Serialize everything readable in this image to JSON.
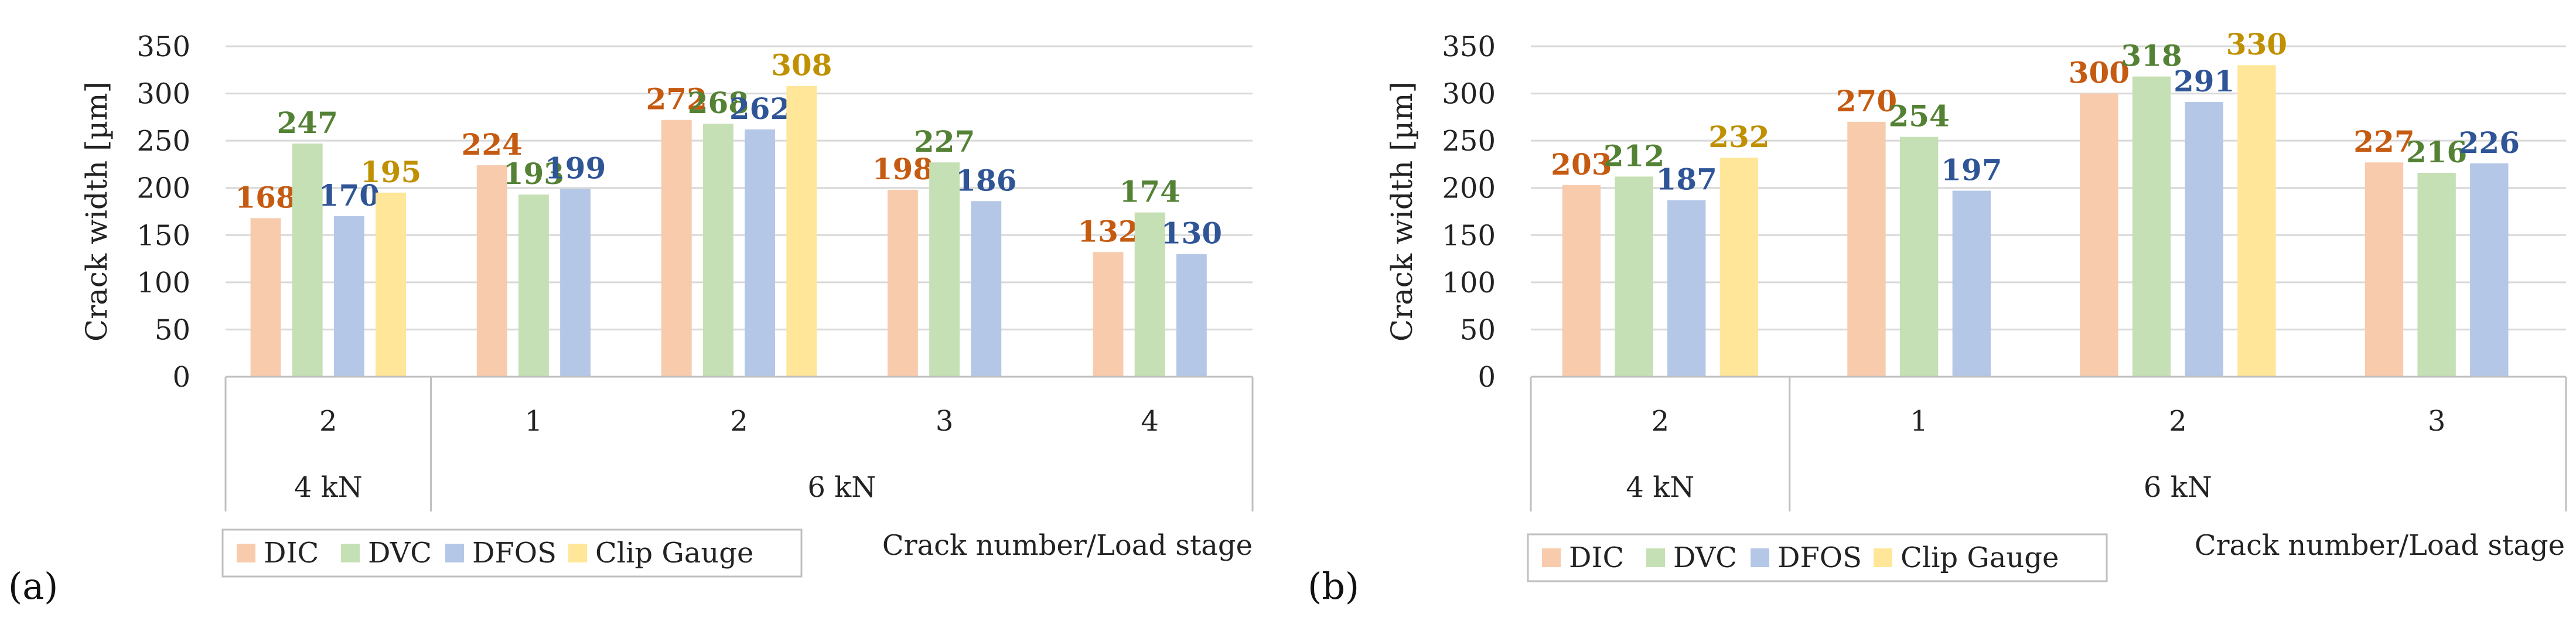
{
  "chart_data": [
    {
      "panel": "(a)",
      "type": "bar",
      "ylabel": "Crack width [µm]",
      "xlabel": "Crack number/Load stage",
      "ylim": [
        0,
        350
      ],
      "yticks": [
        0,
        50,
        100,
        150,
        200,
        250,
        300,
        350
      ],
      "grid": true,
      "legend_position": "bottom-left",
      "series": [
        {
          "name": "DIC",
          "color": "#f8cbad",
          "label_color": "#c55a11"
        },
        {
          "name": "DVC",
          "color": "#c5e0b4",
          "label_color": "#548235"
        },
        {
          "name": "DFOS",
          "color": "#b4c7e7",
          "label_color": "#2f5597"
        },
        {
          "name": "Clip Gauge",
          "color": "#ffe699",
          "label_color": "#bf9000"
        }
      ],
      "groups": [
        {
          "label": "2",
          "values": [
            168,
            247,
            170,
            195
          ]
        },
        {
          "label": "1",
          "values": [
            224,
            193,
            199,
            null
          ]
        },
        {
          "label": "2",
          "values": [
            272,
            268,
            262,
            308
          ]
        },
        {
          "label": "3",
          "values": [
            198,
            227,
            186,
            null
          ]
        },
        {
          "label": "4",
          "values": [
            132,
            174,
            130,
            null
          ]
        }
      ],
      "levels": [
        {
          "label": "4 kN",
          "span": [
            0,
            0
          ]
        },
        {
          "label": "6 kN",
          "span": [
            1,
            4
          ]
        }
      ]
    },
    {
      "panel": "(b)",
      "type": "bar",
      "ylabel": "Crack width [µm]",
      "xlabel": "Crack number/Load stage",
      "ylim": [
        0,
        350
      ],
      "yticks": [
        0,
        50,
        100,
        150,
        200,
        250,
        300,
        350
      ],
      "grid": true,
      "legend_position": "bottom-left",
      "series": [
        {
          "name": "DIC",
          "color": "#f8cbad",
          "label_color": "#c55a11"
        },
        {
          "name": "DVC",
          "color": "#c5e0b4",
          "label_color": "#548235"
        },
        {
          "name": "DFOS",
          "color": "#b4c7e7",
          "label_color": "#2f5597"
        },
        {
          "name": "Clip Gauge",
          "color": "#ffe699",
          "label_color": "#bf9000"
        }
      ],
      "groups": [
        {
          "label": "2",
          "values": [
            203,
            212,
            187,
            232
          ]
        },
        {
          "label": "1",
          "values": [
            270,
            254,
            197,
            null
          ]
        },
        {
          "label": "2",
          "values": [
            300,
            318,
            291,
            330
          ]
        },
        {
          "label": "3",
          "values": [
            227,
            216,
            226,
            null
          ]
        }
      ],
      "levels": [
        {
          "label": "4 kN",
          "span": [
            0,
            0
          ]
        },
        {
          "label": "6 kN",
          "span": [
            1,
            3
          ]
        }
      ]
    }
  ]
}
